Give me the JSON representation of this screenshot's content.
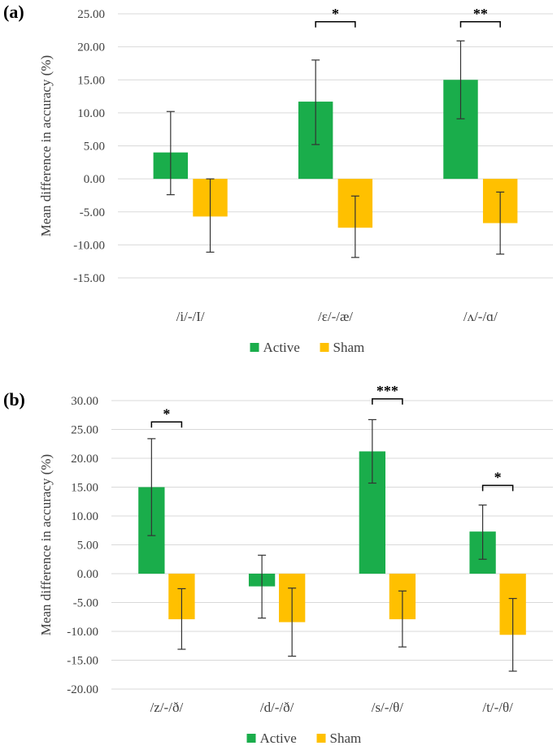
{
  "chart_data": [
    {
      "type": "bar",
      "panel_label": "(a)",
      "ylabel": "Mean difference in accuracy (%)",
      "xlabel": "",
      "ylim": [
        -15,
        25
      ],
      "yticks": [
        "25.00",
        "20.00",
        "15.00",
        "10.00",
        "5.00",
        "0.00",
        "-5.00",
        "-10.00",
        "-15.00"
      ],
      "ytick_values": [
        25,
        20,
        15,
        10,
        5,
        0,
        -5,
        -10,
        -15
      ],
      "categories": [
        "/i/-/I/",
        "/ɛ/-/æ/",
        "/ʌ/-/ɑ/"
      ],
      "series": [
        {
          "name": "Active",
          "color": "#1aad4b",
          "values": [
            4.0,
            11.7,
            15.0
          ],
          "err_low": [
            -2.4,
            5.2,
            9.1
          ],
          "err_high": [
            10.2,
            18.0,
            20.9
          ]
        },
        {
          "name": "Sham",
          "color": "#ffc000",
          "values": [
            -5.7,
            -7.4,
            -6.7
          ],
          "err_low": [
            -11.1,
            -11.9,
            -11.4
          ],
          "err_high": [
            0.0,
            -2.6,
            -2.0
          ]
        }
      ],
      "significance": [
        {
          "category_index": 1,
          "label": "*",
          "level": 23.8
        },
        {
          "category_index": 2,
          "label": "**",
          "level": 23.8
        }
      ],
      "legend": [
        "Active",
        "Sham"
      ]
    },
    {
      "type": "bar",
      "panel_label": "(b)",
      "ylabel": "Mean difference in accuracy (%)",
      "xlabel": "",
      "ylim": [
        -20,
        30
      ],
      "yticks": [
        "30.00",
        "25.00",
        "20.00",
        "15.00",
        "10.00",
        "5.00",
        "0.00",
        "-5.00",
        "-10.00",
        "-15.00",
        "-20.00"
      ],
      "ytick_values": [
        30,
        25,
        20,
        15,
        10,
        5,
        0,
        -5,
        -10,
        -15,
        -20
      ],
      "categories": [
        "/z/-/ð/",
        "/d/-/ð/",
        "/s/-/θ/",
        "/t/-/θ/"
      ],
      "series": [
        {
          "name": "Active",
          "color": "#1aad4b",
          "values": [
            15.0,
            -2.2,
            21.2,
            7.3
          ],
          "err_low": [
            6.6,
            -7.7,
            15.7,
            2.5
          ],
          "err_high": [
            23.4,
            3.2,
            26.7,
            11.9
          ]
        },
        {
          "name": "Sham",
          "color": "#ffc000",
          "values": [
            -7.9,
            -8.4,
            -7.9,
            -10.6
          ],
          "err_low": [
            -13.1,
            -14.3,
            -12.7,
            -16.9
          ],
          "err_high": [
            -2.6,
            -2.5,
            -3.0,
            -4.3
          ]
        }
      ],
      "significance": [
        {
          "category_index": 0,
          "label": "*",
          "level": 26.3
        },
        {
          "category_index": 2,
          "label": "***",
          "level": 30.3
        },
        {
          "category_index": 3,
          "label": "*",
          "level": 15.3
        }
      ],
      "legend": [
        "Active",
        "Sham"
      ]
    }
  ]
}
